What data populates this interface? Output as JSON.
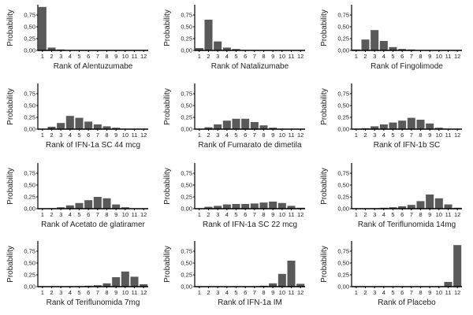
{
  "colors": {
    "bar": "#595959",
    "axis": "#000000",
    "text": "#222222",
    "background": "#ffffff"
  },
  "chart_data": [
    {
      "type": "bar",
      "title": "",
      "xlabel": "Rank of Alentuzumabe",
      "ylabel": "Probability",
      "categories": [
        "1",
        "2",
        "3",
        "4",
        "5",
        "6",
        "7",
        "8",
        "9",
        "10",
        "11",
        "12"
      ],
      "values": [
        0.92,
        0.06,
        0.02,
        0,
        0,
        0,
        0,
        0,
        0,
        0,
        0,
        0
      ],
      "ylim": [
        0,
        0.95
      ],
      "yticks": [
        "0,00",
        "0,25",
        "0,50",
        "0,75"
      ]
    },
    {
      "type": "bar",
      "title": "",
      "xlabel": "Rank of Natalizumabe",
      "ylabel": "Probability",
      "categories": [
        "1",
        "2",
        "3",
        "4",
        "5",
        "6",
        "7",
        "8",
        "9",
        "10",
        "11",
        "12"
      ],
      "values": [
        0.05,
        0.65,
        0.19,
        0.06,
        0.03,
        0.01,
        0.01,
        0,
        0,
        0,
        0,
        0
      ],
      "ylim": [
        0,
        0.95
      ],
      "yticks": [
        "0,00",
        "0,25",
        "0,50",
        "0,75"
      ]
    },
    {
      "type": "bar",
      "title": "",
      "xlabel": "Rank of Fingolimode",
      "ylabel": "Probability",
      "categories": [
        "1",
        "2",
        "3",
        "4",
        "5",
        "6",
        "7",
        "8",
        "9",
        "10",
        "11",
        "12"
      ],
      "values": [
        0.02,
        0.23,
        0.43,
        0.2,
        0.07,
        0.03,
        0.02,
        0,
        0,
        0,
        0,
        0
      ],
      "ylim": [
        0,
        0.95
      ],
      "yticks": [
        "0,00",
        "0,25",
        "0,50",
        "0,75"
      ]
    },
    {
      "type": "bar",
      "title": "",
      "xlabel": "Rank of IFN-1a SC 44 mcg",
      "ylabel": "Probability",
      "categories": [
        "1",
        "2",
        "3",
        "4",
        "5",
        "6",
        "7",
        "8",
        "9",
        "10",
        "11",
        "12"
      ],
      "values": [
        0,
        0.05,
        0.13,
        0.28,
        0.24,
        0.16,
        0.1,
        0.06,
        0.03,
        0,
        0,
        0
      ],
      "ylim": [
        0,
        0.95
      ],
      "yticks": [
        "0,00",
        "0,25",
        "0,50",
        "0,75"
      ]
    },
    {
      "type": "bar",
      "title": "",
      "xlabel": "Rank of Fumarato de dimetila",
      "ylabel": "Probability",
      "categories": [
        "1",
        "2",
        "3",
        "4",
        "5",
        "6",
        "7",
        "8",
        "9",
        "10",
        "11",
        "12"
      ],
      "values": [
        0,
        0.04,
        0.1,
        0.18,
        0.22,
        0.22,
        0.15,
        0.08,
        0.03,
        0.01,
        0,
        0
      ],
      "ylim": [
        0,
        0.95
      ],
      "yticks": [
        "0,00",
        "0,25",
        "0,50",
        "0,75"
      ]
    },
    {
      "type": "bar",
      "title": "",
      "xlabel": "Rank of IFN-1b SC",
      "ylabel": "Probability",
      "categories": [
        "1",
        "2",
        "3",
        "4",
        "5",
        "6",
        "7",
        "8",
        "9",
        "10",
        "11",
        "12"
      ],
      "values": [
        0,
        0.02,
        0.06,
        0.1,
        0.14,
        0.18,
        0.24,
        0.2,
        0.12,
        0.03,
        0.01,
        0
      ],
      "ylim": [
        0,
        0.95
      ],
      "yticks": [
        "0,00",
        "0,25",
        "0,50",
        "0,75"
      ]
    },
    {
      "type": "bar",
      "title": "",
      "xlabel": "Rank of Acetato de glatiramer",
      "ylabel": "Probability",
      "categories": [
        "1",
        "2",
        "3",
        "4",
        "5",
        "6",
        "7",
        "8",
        "9",
        "10",
        "11",
        "12"
      ],
      "values": [
        0,
        0.01,
        0.03,
        0.07,
        0.12,
        0.18,
        0.25,
        0.22,
        0.09,
        0.03,
        0,
        0
      ],
      "ylim": [
        0,
        0.95
      ],
      "yticks": [
        "0,00",
        "0,25",
        "0,50",
        "0,75"
      ]
    },
    {
      "type": "bar",
      "title": "",
      "xlabel": "Rank of IFN-1a SC 22 mcg",
      "ylabel": "Probability",
      "categories": [
        "1",
        "2",
        "3",
        "4",
        "5",
        "6",
        "7",
        "8",
        "9",
        "10",
        "11",
        "12"
      ],
      "values": [
        0,
        0.04,
        0.06,
        0.09,
        0.1,
        0.1,
        0.11,
        0.13,
        0.15,
        0.12,
        0.06,
        0.02
      ],
      "ylim": [
        0,
        0.95
      ],
      "yticks": [
        "0,00",
        "0,25",
        "0,50",
        "0,75"
      ]
    },
    {
      "type": "bar",
      "title": "",
      "xlabel": "Rank of Teriflunomida 14mg",
      "ylabel": "Probability",
      "categories": [
        "1",
        "2",
        "3",
        "4",
        "5",
        "6",
        "7",
        "8",
        "9",
        "10",
        "11",
        "12"
      ],
      "values": [
        0,
        0,
        0.01,
        0.02,
        0.03,
        0.05,
        0.08,
        0.16,
        0.3,
        0.22,
        0.09,
        0.02
      ],
      "ylim": [
        0,
        0.95
      ],
      "yticks": [
        "0,00",
        "0,25",
        "0,50",
        "0,75"
      ]
    },
    {
      "type": "bar",
      "title": "",
      "xlabel": "Rank of Teriflunomida 7mg",
      "ylabel": "Probability",
      "categories": [
        "1",
        "2",
        "3",
        "4",
        "5",
        "6",
        "7",
        "8",
        "9",
        "10",
        "11",
        "12"
      ],
      "values": [
        0,
        0,
        0,
        0.01,
        0.01,
        0.02,
        0.03,
        0.07,
        0.2,
        0.32,
        0.21,
        0.05
      ],
      "ylim": [
        0,
        0.95
      ],
      "yticks": [
        "0,00",
        "0,25",
        "0,50",
        "0,75"
      ]
    },
    {
      "type": "bar",
      "title": "",
      "xlabel": "Rank of IFN-1a IM",
      "ylabel": "Probability",
      "categories": [
        "1",
        "2",
        "3",
        "4",
        "5",
        "6",
        "7",
        "8",
        "9",
        "10",
        "11",
        "12"
      ],
      "values": [
        0,
        0,
        0,
        0,
        0,
        0,
        0.01,
        0.02,
        0.07,
        0.27,
        0.55,
        0.06
      ],
      "ylim": [
        0,
        0.95
      ],
      "yticks": [
        "0,00",
        "0,25",
        "0,50",
        "0,75"
      ]
    },
    {
      "type": "bar",
      "title": "",
      "xlabel": "Rank of Placebo",
      "ylabel": "Probability",
      "categories": [
        "1",
        "2",
        "3",
        "4",
        "5",
        "6",
        "7",
        "8",
        "9",
        "10",
        "11",
        "12"
      ],
      "values": [
        0,
        0,
        0,
        0,
        0,
        0,
        0,
        0,
        0,
        0.01,
        0.1,
        0.88
      ],
      "ylim": [
        0,
        0.95
      ],
      "yticks": [
        "0,00",
        "0,25",
        "0,50",
        "0,75"
      ]
    }
  ]
}
